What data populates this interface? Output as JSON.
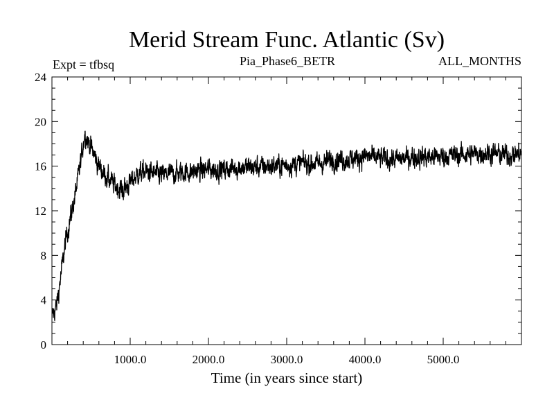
{
  "chart_data": {
    "type": "line",
    "title": "Merid Stream Func. Atlantic (Sv)",
    "subtitle_left": "Expt = tfbsq",
    "subtitle_center": "Pia_Phase6_BETR",
    "subtitle_right": "ALL_MONTHS",
    "xlabel": "Time (in years since start)",
    "ylabel": "",
    "xlim": [
      0,
      6000
    ],
    "ylim": [
      0,
      24
    ],
    "x_ticks": [
      1000,
      2000,
      3000,
      4000,
      5000
    ],
    "x_tick_labels": [
      "1000.0",
      "2000.0",
      "3000.0",
      "4000.0",
      "5000.0"
    ],
    "y_ticks": [
      0,
      4,
      8,
      12,
      16,
      20,
      24
    ],
    "y_tick_labels": [
      "0",
      "4",
      "8",
      "12",
      "16",
      "20",
      "24"
    ],
    "grid": false,
    "series": [
      {
        "color": "#000000",
        "points": [
          [
            0,
            2.5
          ],
          [
            60,
            3.5
          ],
          [
            120,
            6.5
          ],
          [
            180,
            9.5
          ],
          [
            240,
            11.5
          ],
          [
            300,
            13.5
          ],
          [
            360,
            16.0
          ],
          [
            420,
            19.0
          ],
          [
            480,
            18.0
          ],
          [
            540,
            17.0
          ],
          [
            600,
            16.0
          ],
          [
            700,
            15.0
          ],
          [
            800,
            14.3
          ],
          [
            900,
            13.8
          ],
          [
            1000,
            14.5
          ],
          [
            1100,
            15.3
          ],
          [
            1200,
            15.5
          ],
          [
            1400,
            15.2
          ],
          [
            1600,
            15.4
          ],
          [
            1800,
            15.5
          ],
          [
            2000,
            15.7
          ],
          [
            2200,
            15.7
          ],
          [
            2400,
            15.9
          ],
          [
            2600,
            15.9
          ],
          [
            2800,
            16.0
          ],
          [
            3000,
            16.1
          ],
          [
            3200,
            16.3
          ],
          [
            3400,
            16.2
          ],
          [
            3600,
            16.6
          ],
          [
            3800,
            16.6
          ],
          [
            4000,
            16.9
          ],
          [
            4200,
            16.7
          ],
          [
            4400,
            16.6
          ],
          [
            4600,
            16.8
          ],
          [
            4800,
            16.8
          ],
          [
            5000,
            16.9
          ],
          [
            5200,
            17.0
          ],
          [
            5400,
            17.1
          ],
          [
            5600,
            17.2
          ],
          [
            5800,
            17.0
          ],
          [
            6000,
            17.1
          ]
        ],
        "noise_sv": 1.0
      }
    ]
  }
}
